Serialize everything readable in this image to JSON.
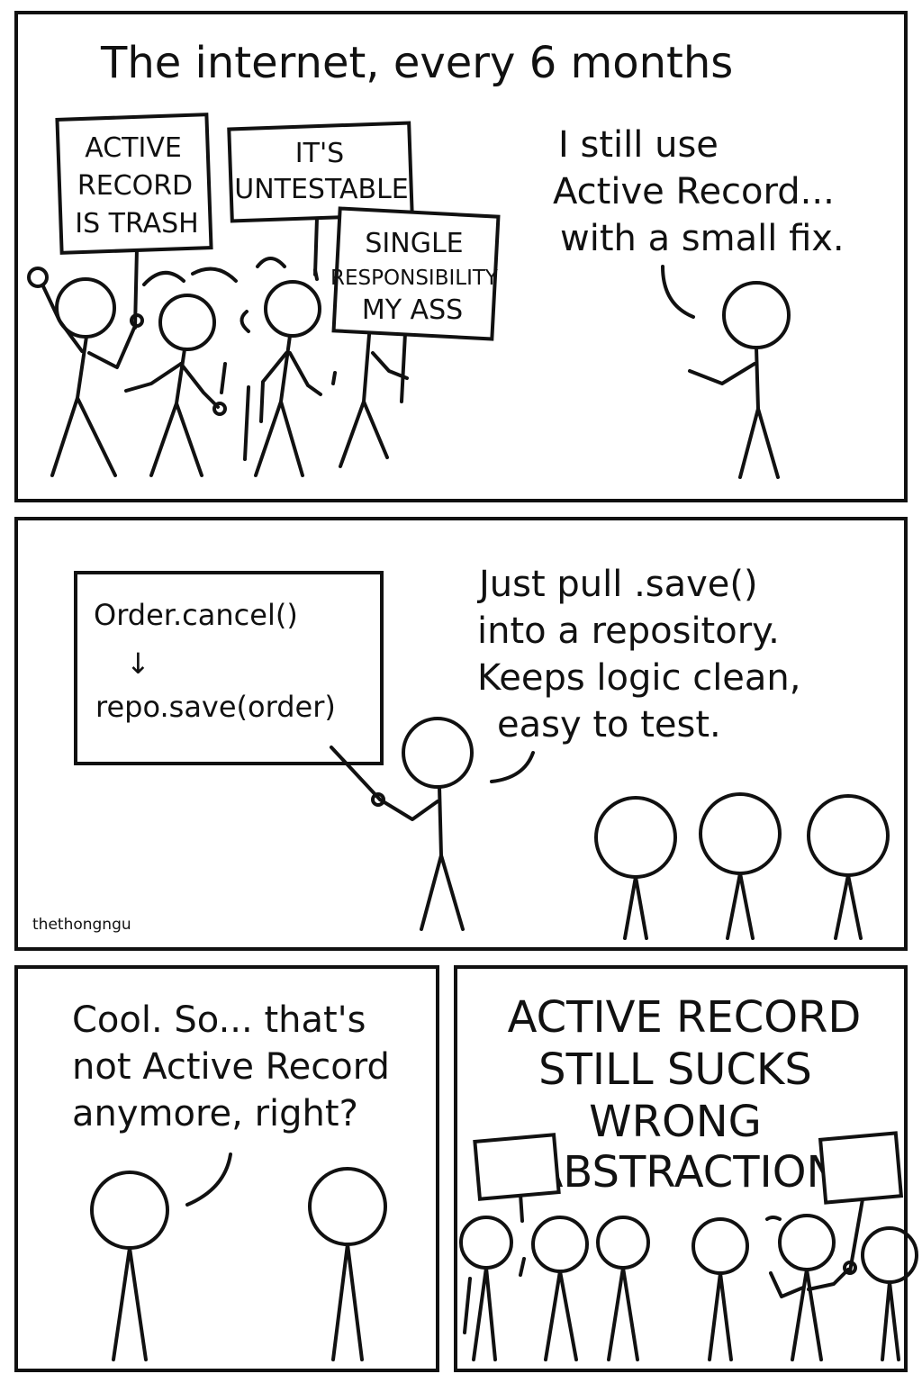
{
  "panel1": {
    "caption": "The internet, every 6 months",
    "signs": [
      {
        "lines": [
          "ACTIVE",
          "RECORD",
          "IS TRASH"
        ]
      },
      {
        "lines": [
          "IT'S",
          "UNTESTABLE"
        ]
      },
      {
        "lines": [
          "SINGLE",
          "RESPONSIBILITY",
          "MY ASS"
        ]
      }
    ],
    "speech": [
      "I still use",
      "Active Record...",
      "with a small fix."
    ]
  },
  "panel2": {
    "board": {
      "line1": "Order.cancel()",
      "arrow": "↓",
      "line2": "repo.save(order)"
    },
    "speech": [
      "Just pull .save()",
      "into a repository.",
      "Keeps logic clean,",
      "easy to test."
    ],
    "credit": "thethongngu"
  },
  "panel3": {
    "speech": [
      "Cool. So... that's",
      "not Active Record",
      "anymore, right?"
    ]
  },
  "panel4": {
    "shout": [
      "ACTIVE RECORD",
      "STILL SUCKS",
      "WRONG",
      "ABSTRACTION"
    ]
  }
}
